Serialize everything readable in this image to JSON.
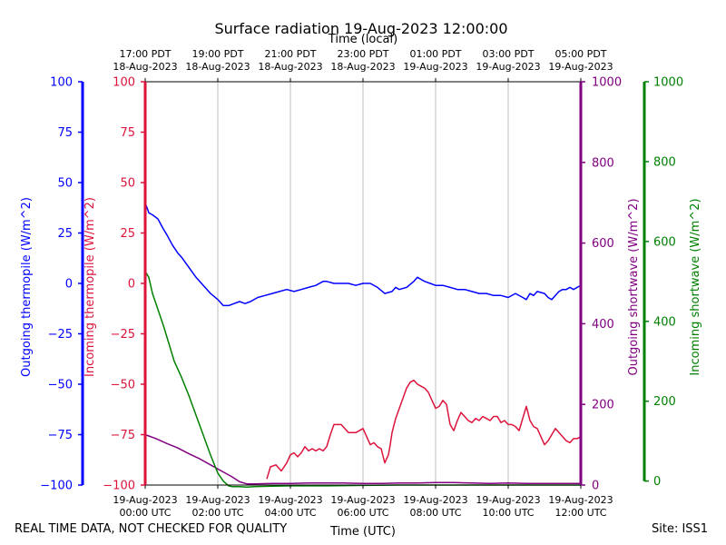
{
  "chart_data": {
    "type": "line",
    "title": "Surface radiation 19-Aug-2023 12:00:00",
    "top_axis_title": "Time (local)",
    "xlabel": "Time (UTC)",
    "x_unit": "hours since 19-Aug-2023 00:00 UTC",
    "xlim": [
      0,
      12
    ],
    "x_ticks_utc": [
      {
        "x": 0,
        "date": "19-Aug-2023",
        "time": "00:00 UTC"
      },
      {
        "x": 2,
        "date": "19-Aug-2023",
        "time": "02:00 UTC"
      },
      {
        "x": 4,
        "date": "19-Aug-2023",
        "time": "04:00 UTC"
      },
      {
        "x": 6,
        "date": "19-Aug-2023",
        "time": "06:00 UTC"
      },
      {
        "x": 8,
        "date": "19-Aug-2023",
        "time": "08:00 UTC"
      },
      {
        "x": 10,
        "date": "19-Aug-2023",
        "time": "10:00 UTC"
      },
      {
        "x": 12,
        "date": "19-Aug-2023",
        "time": "12:00 UTC"
      }
    ],
    "x_ticks_local": [
      {
        "x": 0,
        "time": "17:00 PDT",
        "date": "18-Aug-2023"
      },
      {
        "x": 2,
        "time": "19:00 PDT",
        "date": "18-Aug-2023"
      },
      {
        "x": 4,
        "time": "21:00 PDT",
        "date": "18-Aug-2023"
      },
      {
        "x": 6,
        "time": "23:00 PDT",
        "date": "18-Aug-2023"
      },
      {
        "x": 8,
        "time": "01:00 PDT",
        "date": "19-Aug-2023"
      },
      {
        "x": 10,
        "time": "03:00 PDT",
        "date": "19-Aug-2023"
      },
      {
        "x": 12,
        "time": "05:00 PDT",
        "date": "19-Aug-2023"
      }
    ],
    "axes": [
      {
        "id": "out_thermo",
        "label": "Outgoing thermopile (W/m^2)",
        "color": "#0000ff",
        "side": "left-outer",
        "ylim": [
          -100,
          100
        ],
        "ticks": [
          -100,
          -75,
          -50,
          -25,
          0,
          25,
          50,
          75,
          100
        ]
      },
      {
        "id": "in_thermo",
        "label": "Incoming thermopile (W/m^2)",
        "color": "#dc143c",
        "side": "left-inner",
        "ylim": [
          -100,
          100
        ],
        "ticks": [
          -100,
          -75,
          -50,
          -25,
          0,
          25,
          50,
          75,
          100
        ]
      },
      {
        "id": "out_sw",
        "label": "Outgoing shortwave (W/m^2)",
        "color": "#800080",
        "side": "right-inner",
        "ylim": [
          0,
          1000
        ],
        "ticks": [
          0,
          200,
          400,
          600,
          800,
          1000
        ]
      },
      {
        "id": "in_sw",
        "label": "Incoming shortwave (W/m^2)",
        "color": "#008000",
        "side": "right-outer",
        "ylim": [
          -10,
          1000
        ],
        "ticks": [
          0,
          200,
          400,
          600,
          800,
          1000
        ]
      }
    ],
    "series": [
      {
        "name": "Outgoing thermopile",
        "axis": "out_thermo",
        "color": "#0000ff",
        "x": [
          0,
          0.1,
          0.2,
          0.35,
          0.5,
          0.6,
          0.75,
          0.9,
          1.0,
          1.2,
          1.4,
          1.6,
          1.8,
          2.0,
          2.15,
          2.3,
          2.45,
          2.6,
          2.75,
          2.9,
          3.1,
          3.3,
          3.5,
          3.7,
          3.9,
          4.1,
          4.3,
          4.5,
          4.7,
          4.9,
          5.0,
          5.2,
          5.4,
          5.6,
          5.8,
          6.0,
          6.2,
          6.4,
          6.6,
          6.8,
          6.9,
          7.0,
          7.2,
          7.4,
          7.5,
          7.6,
          7.7,
          7.85,
          8.0,
          8.2,
          8.4,
          8.6,
          8.8,
          9.0,
          9.2,
          9.4,
          9.6,
          9.8,
          10.0,
          10.2,
          10.4,
          10.5,
          10.6,
          10.7,
          10.8,
          11.0,
          11.1,
          11.2,
          11.3,
          11.4,
          11.5,
          11.6,
          11.7,
          11.8,
          11.9,
          12.0
        ],
        "values": [
          40,
          35,
          34,
          32,
          27,
          24,
          19,
          15,
          13,
          8,
          3,
          -1,
          -5,
          -8,
          -11,
          -11,
          -10,
          -9,
          -10,
          -9,
          -7,
          -6,
          -5,
          -4,
          -3,
          -4,
          -3,
          -2,
          -1,
          1,
          1,
          0,
          0,
          0,
          -1,
          0,
          0,
          -2,
          -5,
          -4,
          -2,
          -3,
          -2,
          1,
          3,
          2,
          1,
          0,
          -1,
          -1,
          -2,
          -3,
          -3,
          -4,
          -5,
          -5,
          -6,
          -6,
          -7,
          -5,
          -7,
          -8,
          -5,
          -6,
          -4,
          -5,
          -7,
          -8,
          -6,
          -4,
          -3,
          -3,
          -2,
          -3,
          -2,
          -1
        ]
      },
      {
        "name": "Incoming thermopile",
        "axis": "in_thermo",
        "color": "#dc143c",
        "x": [
          3.35,
          3.45,
          3.6,
          3.75,
          3.9,
          4.0,
          4.1,
          4.2,
          4.3,
          4.4,
          4.5,
          4.6,
          4.7,
          4.8,
          4.9,
          5.0,
          5.1,
          5.2,
          5.4,
          5.6,
          5.8,
          6.0,
          6.1,
          6.2,
          6.3,
          6.4,
          6.5,
          6.6,
          6.7,
          6.75,
          6.8,
          6.9,
          7.0,
          7.1,
          7.2,
          7.3,
          7.4,
          7.5,
          7.6,
          7.7,
          7.8,
          7.9,
          8.0,
          8.1,
          8.2,
          8.3,
          8.4,
          8.5,
          8.6,
          8.7,
          8.8,
          8.9,
          9.0,
          9.1,
          9.2,
          9.3,
          9.4,
          9.5,
          9.6,
          9.7,
          9.8,
          9.9,
          10.0,
          10.1,
          10.2,
          10.3,
          10.4,
          10.5,
          10.6,
          10.7,
          10.8,
          10.9,
          11.0,
          11.1,
          11.2,
          11.3,
          11.4,
          11.5,
          11.6,
          11.7,
          11.8,
          11.9,
          12.0
        ],
        "values": [
          -97,
          -91,
          -90,
          -93,
          -89,
          -85,
          -84,
          -86,
          -84,
          -81,
          -83,
          -82,
          -83,
          -82,
          -83,
          -81,
          -75,
          -70,
          -70,
          -74,
          -74,
          -72,
          -76,
          -80,
          -79,
          -81,
          -82,
          -89,
          -85,
          -80,
          -74,
          -67,
          -62,
          -57,
          -52,
          -49,
          -48,
          -50,
          -51,
          -52,
          -54,
          -58,
          -62,
          -61,
          -58,
          -60,
          -70,
          -73,
          -68,
          -64,
          -66,
          -68,
          -69,
          -67,
          -68,
          -66,
          -67,
          -68,
          -66,
          -66,
          -69,
          -68,
          -70,
          -70,
          -71,
          -73,
          -67,
          -61,
          -68,
          -71,
          -72,
          -76,
          -80,
          -78,
          -75,
          -72,
          -74,
          -76,
          -78,
          -79,
          -77,
          -77,
          -76
        ]
      },
      {
        "name": "Outgoing shortwave",
        "axis": "out_sw",
        "color": "#800080",
        "x": [
          0,
          0.3,
          0.6,
          0.9,
          1.2,
          1.5,
          1.8,
          2.1,
          2.4,
          2.6,
          2.8,
          3.0,
          3.5,
          4.0,
          4.5,
          5.0,
          5.5,
          6.0,
          6.5,
          7.0,
          7.5,
          8.0,
          8.5,
          9.0,
          9.5,
          10.0,
          10.5,
          11.0,
          11.5,
          12.0
        ],
        "values": [
          125,
          115,
          103,
          92,
          78,
          65,
          50,
          35,
          20,
          8,
          3,
          3,
          4,
          4,
          5,
          5,
          5,
          4,
          4,
          5,
          5,
          6,
          6,
          5,
          4,
          5,
          4,
          4,
          4,
          4
        ]
      },
      {
        "name": "Incoming shortwave",
        "axis": "in_sw",
        "color": "#008000",
        "x": [
          0,
          0.1,
          0.2,
          0.35,
          0.5,
          0.65,
          0.8,
          1.0,
          1.2,
          1.4,
          1.6,
          1.8,
          2.0,
          2.15,
          2.3,
          2.4,
          2.6,
          2.8,
          3.0,
          3.5,
          4.0,
          5.0,
          6.0,
          7.0,
          8.0,
          9.0,
          10.0,
          11.0,
          12.0
        ],
        "values": [
          525,
          510,
          470,
          430,
          390,
          345,
          300,
          260,
          215,
          165,
          115,
          65,
          20,
          0,
          -12,
          -14,
          -14,
          -15,
          -14,
          -13,
          -12,
          -12,
          -11,
          -10,
          -10,
          -10,
          -10,
          -10,
          -10
        ]
      }
    ]
  },
  "footer": {
    "quality_note": "REAL TIME DATA, NOT CHECKED FOR QUALITY",
    "site": "Site: ISS1"
  }
}
